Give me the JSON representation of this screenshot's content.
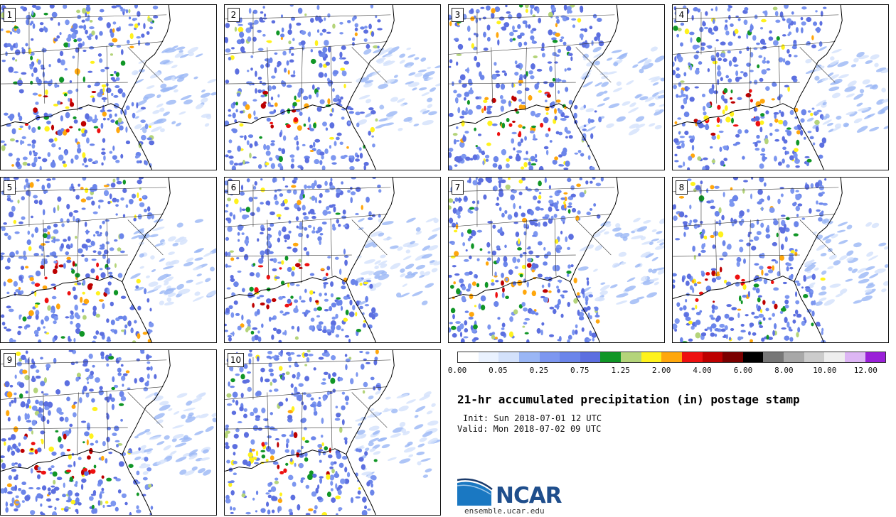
{
  "panels": [
    {
      "label": "1"
    },
    {
      "label": "2"
    },
    {
      "label": "3"
    },
    {
      "label": "4"
    },
    {
      "label": "5"
    },
    {
      "label": "6"
    },
    {
      "label": "7"
    },
    {
      "label": "8"
    },
    {
      "label": "9"
    },
    {
      "label": "10"
    }
  ],
  "colorbar": {
    "colors": [
      "#ffffff",
      "#eaf2ff",
      "#d3e1fb",
      "#9ab6f5",
      "#7d97f0",
      "#6b85ea",
      "#5c6fe0",
      "#109626",
      "#b4d47a",
      "#fff21c",
      "#ffa70c",
      "#ee1010",
      "#bd0000",
      "#7a0000",
      "#000000",
      "#777777",
      "#a8a8a8",
      "#cccccc",
      "#eeeeee",
      "#ddb6f4",
      "#9a20d8"
    ],
    "tick_labels": [
      "0.00",
      "0.05",
      "0.25",
      "0.75",
      "1.25",
      "2.00",
      "4.00",
      "6.00",
      "8.00",
      "10.00",
      "12.00"
    ]
  },
  "title": "21-hr accumulated precipitation (in) postage stamp",
  "init": "Init: Sun 2018-07-01 12 UTC",
  "valid": "Valid: Mon 2018-07-02 09 UTC",
  "logo": {
    "text": "NCAR",
    "url_text": "ensemble.ucar.edu",
    "color": "#1f4e8c"
  }
}
